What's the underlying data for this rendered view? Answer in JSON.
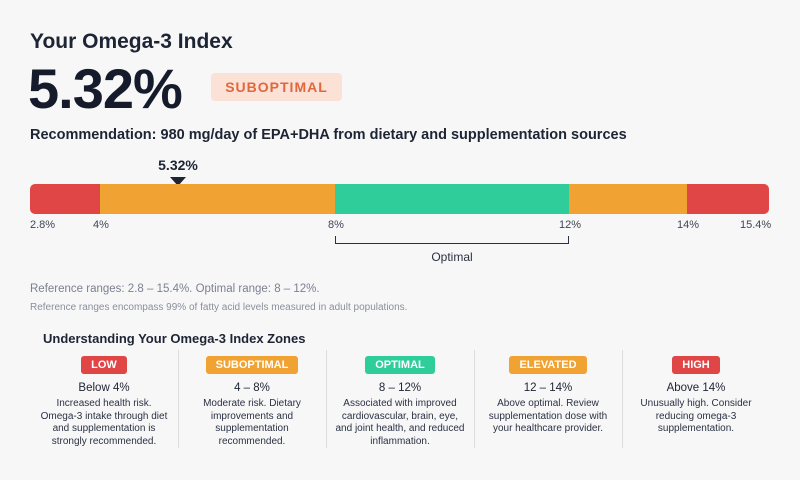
{
  "title": "Your Omega-3 Index",
  "value": "5.32%",
  "status": "SUBOPTIMAL",
  "recommendation": "Recommendation: 980 mg/day of EPA+DHA from dietary and supplementation sources",
  "marker": {
    "label": "5.32%",
    "value": 5.32
  },
  "scale": {
    "ticks": [
      {
        "label": "2.8%",
        "value": 2.8
      },
      {
        "label": "4%",
        "value": 4
      },
      {
        "label": "8%",
        "value": 8
      },
      {
        "label": "12%",
        "value": 12
      },
      {
        "label": "14%",
        "value": 14
      },
      {
        "label": "15.4%",
        "value": 15.4
      }
    ],
    "segments": [
      {
        "from": 2.8,
        "to": 4,
        "color": "#e04646"
      },
      {
        "from": 4,
        "to": 8,
        "color": "#f0a232"
      },
      {
        "from": 8,
        "to": 12,
        "color": "#2fcd9a"
      },
      {
        "from": 12,
        "to": 14,
        "color": "#f0a232"
      },
      {
        "from": 14,
        "to": 15.4,
        "color": "#e04646"
      }
    ],
    "optimal_label": "Optimal"
  },
  "reference": {
    "line1": "Reference ranges: 2.8 – 15.4%. Optimal range: 8 – 12%.",
    "line2": "Reference ranges encompass 99% of fatty acid levels measured in adult populations."
  },
  "zones_title": "Understanding Your Omega-3 Index Zones",
  "zones": [
    {
      "badge": "LOW",
      "color": "#e04646",
      "range": "Below 4%",
      "desc": "Increased health risk. Omega-3 intake through diet and supplementation is strongly recommended."
    },
    {
      "badge": "SUBOPTIMAL",
      "color": "#f0a232",
      "range": "4 – 8%",
      "desc": "Moderate risk. Dietary improvements and supplementation recommended."
    },
    {
      "badge": "OPTIMAL",
      "color": "#2fcd9a",
      "range": "8 – 12%",
      "desc": "Associated with improved cardiovascular, brain, eye, and joint health, and reduced inflammation."
    },
    {
      "badge": "ELEVATED",
      "color": "#f0a232",
      "range": "12 – 14%",
      "desc": "Above optimal. Review supplementation dose with your healthcare provider."
    },
    {
      "badge": "HIGH",
      "color": "#e04646",
      "range": "Above 14%",
      "desc": "Unusually high. Consider reducing omega-3 supplementation."
    }
  ],
  "colors": {
    "status_bg": "#fbe1d6",
    "status_text": "#e0683c"
  }
}
